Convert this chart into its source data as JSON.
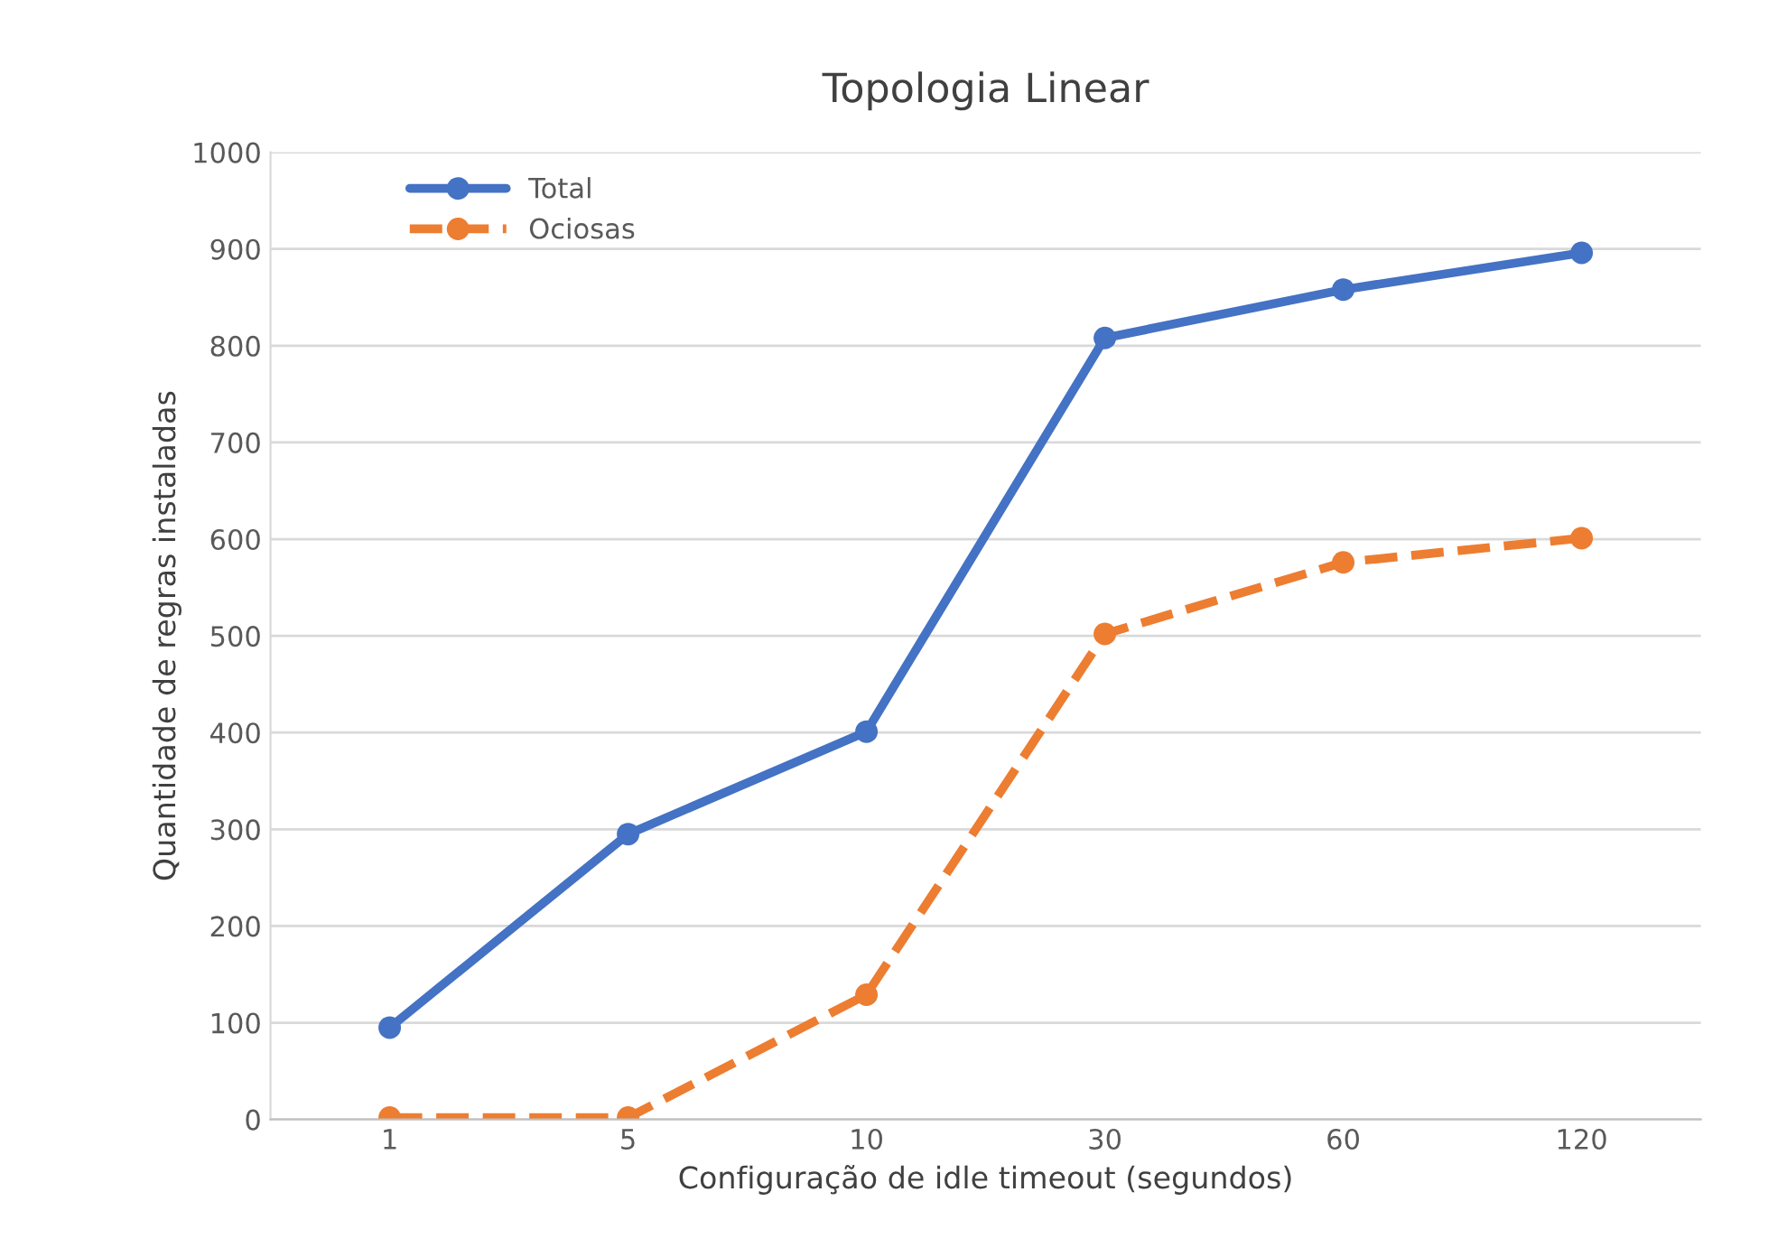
{
  "chart_data": {
    "type": "line",
    "title": "Topologia Linear",
    "xlabel": "Configuração de idle timeout (segundos)",
    "ylabel": "Quantidade de regras instaladas",
    "categories": [
      "1",
      "5",
      "10",
      "30",
      "60",
      "120"
    ],
    "series": [
      {
        "name": "Total",
        "color": "#4472c4",
        "values": [
          95,
          295,
          401,
          808,
          858,
          896
        ],
        "line_style": "solid"
      },
      {
        "name": "Ociosas",
        "color": "#ed7d31",
        "values": [
          2,
          2,
          129,
          502,
          576,
          601
        ],
        "line_style": "dashed"
      }
    ],
    "ylim": [
      0,
      1000
    ],
    "yticks": [
      0,
      100,
      200,
      300,
      400,
      500,
      600,
      700,
      800,
      900,
      1000
    ],
    "grid": "y",
    "legend": "top left",
    "marker": "circle"
  }
}
